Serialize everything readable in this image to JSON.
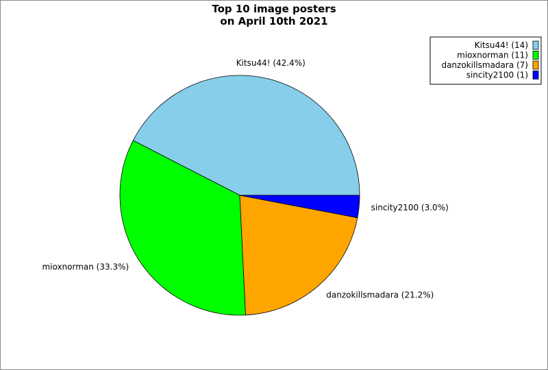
{
  "chart_data": {
    "type": "pie",
    "title": [
      "Top 10 image posters",
      "on April 10th 2021"
    ],
    "legend_labels": [
      "Kitsu44! (14)",
      "mioxnorman (11)",
      "danzokillsmadara (7)",
      "sincity2100 (1)"
    ],
    "values": [
      42.4,
      33.3,
      21.2,
      3.0
    ],
    "value_labels": [
      "Kitsu44! (42.4%)",
      "mioxnorman (33.3%)",
      "danzokillsmadara (21.2%)",
      "sincity2100 (3.0%)"
    ],
    "colors": [
      "#87ceeb",
      "#00ff00",
      "#ffa500",
      "#0000ff"
    ],
    "legend": "upper right"
  }
}
